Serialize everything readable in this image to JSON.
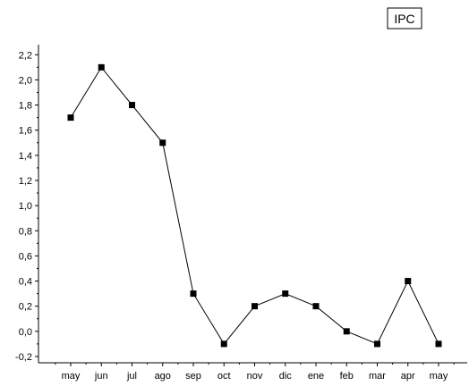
{
  "chart_data": {
    "type": "line",
    "categories": [
      "may",
      "jun",
      "jul",
      "ago",
      "sep",
      "oct",
      "nov",
      "dic",
      "ene",
      "feb",
      "mar",
      "apr",
      "may"
    ],
    "series": [
      {
        "name": "IPC",
        "values": [
          1.7,
          2.1,
          1.8,
          1.5,
          0.3,
          -0.1,
          0.2,
          0.3,
          0.2,
          0.0,
          -0.1,
          0.4,
          -0.1
        ],
        "marker": "square",
        "color": "#000000"
      }
    ],
    "ylim": [
      -0.25,
      2.28
    ],
    "yticks": [
      "-0,2",
      "0,0",
      "0,2",
      "0,4",
      "0,6",
      "0,8",
      "1,0",
      "1,2",
      "1,4",
      "1,6",
      "1,8",
      "2,0",
      "2,2"
    ],
    "ytick_values": [
      -0.2,
      0.0,
      0.2,
      0.4,
      0.6,
      0.8,
      1.0,
      1.2,
      1.4,
      1.6,
      1.8,
      2.0,
      2.2
    ],
    "xlabel": "",
    "ylabel": "",
    "title": "",
    "legend": {
      "position": "top-right",
      "label": "IPC"
    },
    "grid": false
  }
}
